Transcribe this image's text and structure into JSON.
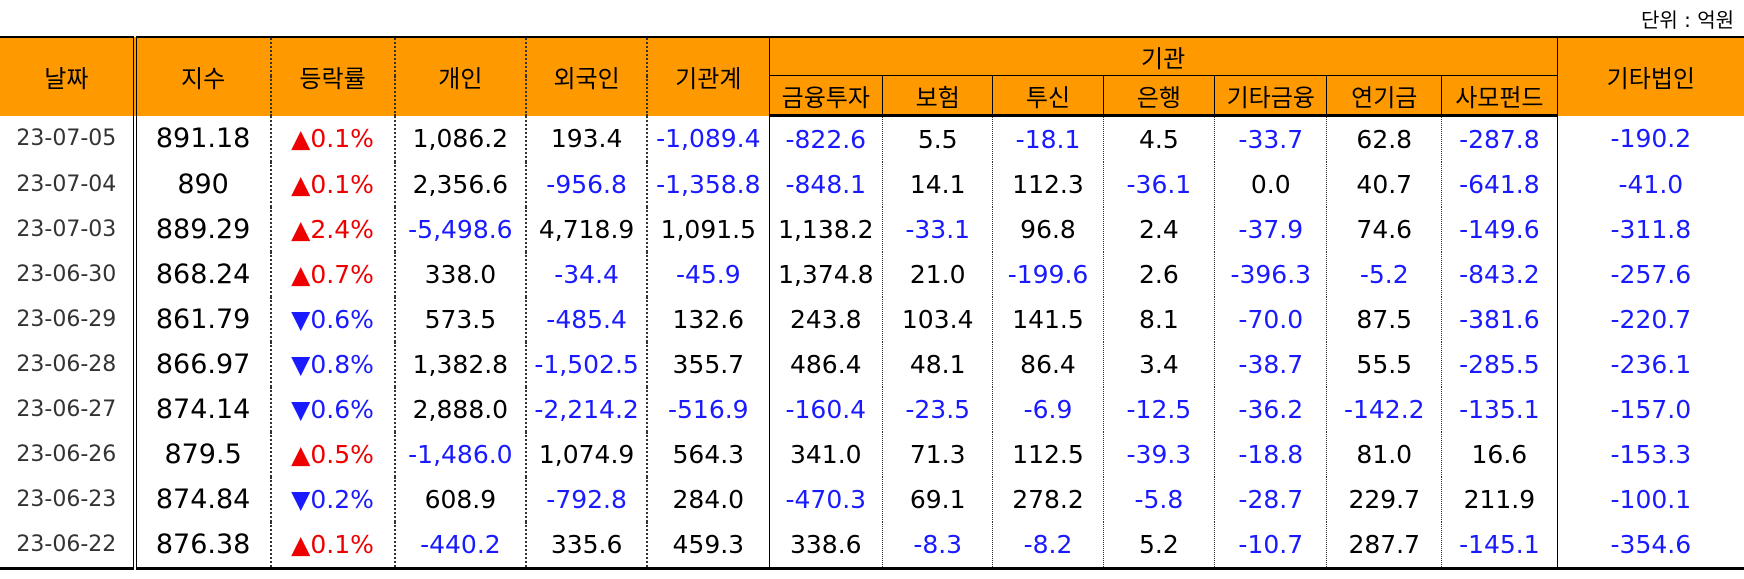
{
  "unit_label": "단위 : 억원",
  "headers": {
    "date": "날짜",
    "index": "지수",
    "change": "등락률",
    "individual": "개인",
    "foreign": "외국인",
    "inst_total": "기관계",
    "institution": "기관",
    "sub": [
      "금융투자",
      "보험",
      "투신",
      "은행",
      "기타금융",
      "연기금",
      "사모펀드"
    ],
    "other_corp": "기타법인"
  },
  "rows": [
    {
      "date": "23-07-05",
      "index": "891.18",
      "dir": "up",
      "change": "▲0.1%",
      "individual": "1,086.2",
      "foreign": "193.4",
      "inst_total": "-1,089.4",
      "inst": [
        "-822.6",
        "5.5",
        "-18.1",
        "4.5",
        "-33.7",
        "62.8",
        "-287.8"
      ],
      "other_corp": "-190.2"
    },
    {
      "date": "23-07-04",
      "index": "890",
      "dir": "up",
      "change": "▲0.1%",
      "individual": "2,356.6",
      "foreign": "-956.8",
      "inst_total": "-1,358.8",
      "inst": [
        "-848.1",
        "14.1",
        "112.3",
        "-36.1",
        "0.0",
        "40.7",
        "-641.8"
      ],
      "other_corp": "-41.0"
    },
    {
      "date": "23-07-03",
      "index": "889.29",
      "dir": "up",
      "change": "▲2.4%",
      "individual": "-5,498.6",
      "foreign": "4,718.9",
      "inst_total": "1,091.5",
      "inst": [
        "1,138.2",
        "-33.1",
        "96.8",
        "2.4",
        "-37.9",
        "74.6",
        "-149.6"
      ],
      "other_corp": "-311.8"
    },
    {
      "date": "23-06-30",
      "index": "868.24",
      "dir": "up",
      "change": "▲0.7%",
      "individual": "338.0",
      "foreign": "-34.4",
      "inst_total": "-45.9",
      "inst": [
        "1,374.8",
        "21.0",
        "-199.6",
        "2.6",
        "-396.3",
        "-5.2",
        "-843.2"
      ],
      "other_corp": "-257.6"
    },
    {
      "date": "23-06-29",
      "index": "861.79",
      "dir": "down",
      "change": "▼0.6%",
      "individual": "573.5",
      "foreign": "-485.4",
      "inst_total": "132.6",
      "inst": [
        "243.8",
        "103.4",
        "141.5",
        "8.1",
        "-70.0",
        "87.5",
        "-381.6"
      ],
      "other_corp": "-220.7"
    },
    {
      "date": "23-06-28",
      "index": "866.97",
      "dir": "down",
      "change": "▼0.8%",
      "individual": "1,382.8",
      "foreign": "-1,502.5",
      "inst_total": "355.7",
      "inst": [
        "486.4",
        "48.1",
        "86.4",
        "3.4",
        "-38.7",
        "55.5",
        "-285.5"
      ],
      "other_corp": "-236.1"
    },
    {
      "date": "23-06-27",
      "index": "874.14",
      "dir": "down",
      "change": "▼0.6%",
      "individual": "2,888.0",
      "foreign": "-2,214.2",
      "inst_total": "-516.9",
      "inst": [
        "-160.4",
        "-23.5",
        "-6.9",
        "-12.5",
        "-36.2",
        "-142.2",
        "-135.1"
      ],
      "other_corp": "-157.0"
    },
    {
      "date": "23-06-26",
      "index": "879.5",
      "dir": "up",
      "change": "▲0.5%",
      "individual": "-1,486.0",
      "foreign": "1,074.9",
      "inst_total": "564.3",
      "inst": [
        "341.0",
        "71.3",
        "112.5",
        "-39.3",
        "-18.8",
        "81.0",
        "16.6"
      ],
      "other_corp": "-153.3"
    },
    {
      "date": "23-06-23",
      "index": "874.84",
      "dir": "down",
      "change": "▼0.2%",
      "individual": "608.9",
      "foreign": "-792.8",
      "inst_total": "284.0",
      "inst": [
        "-470.3",
        "69.1",
        "278.2",
        "-5.8",
        "-28.7",
        "229.7",
        "211.9"
      ],
      "other_corp": "-100.1"
    },
    {
      "date": "23-06-22",
      "index": "876.38",
      "dir": "up",
      "change": "▲0.1%",
      "individual": "-440.2",
      "foreign": "335.6",
      "inst_total": "459.3",
      "inst": [
        "338.6",
        "-8.3",
        "-8.2",
        "5.2",
        "-10.7",
        "287.7",
        "-145.1"
      ],
      "other_corp": "-354.6"
    }
  ]
}
